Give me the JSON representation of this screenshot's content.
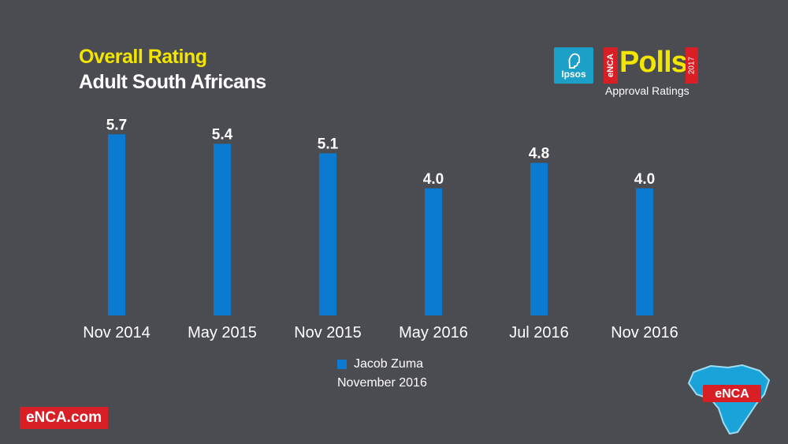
{
  "header": {
    "title": "Overall Rating",
    "subtitle": "Adult South Africans"
  },
  "legend": {
    "series_name": "Jacob Zuma",
    "note": "November 2016"
  },
  "logos": {
    "ipsos": "Ipsos",
    "polls_brand": "eNCA",
    "polls_word": "Polls",
    "polls_year": "2017",
    "polls_sub": "Approval Ratings",
    "corner_logo": "eNCA"
  },
  "footer": {
    "site": "eNCA.com"
  },
  "colors": {
    "background": "#4a4c52",
    "bar": "#0a7bd1",
    "title": "#f2e600",
    "brand_red": "#d81f26"
  },
  "chart_data": {
    "type": "bar",
    "categories": [
      "Nov 2014",
      "May 2015",
      "Nov 2015",
      "May 2016",
      "Jul 2016",
      "Nov 2016"
    ],
    "series": [
      {
        "name": "Jacob Zuma",
        "values": [
          5.7,
          5.4,
          5.1,
          4.0,
          4.8,
          4.0
        ]
      }
    ],
    "value_labels": [
      "5.7",
      "5.4",
      "5.1",
      "4.0",
      "4.8",
      "4.0"
    ],
    "title": "Overall Rating",
    "subtitle": "Adult South Africans",
    "xlabel": "",
    "ylabel": "",
    "ylim": [
      0,
      10
    ],
    "grid": false,
    "legend_position": "bottom"
  }
}
